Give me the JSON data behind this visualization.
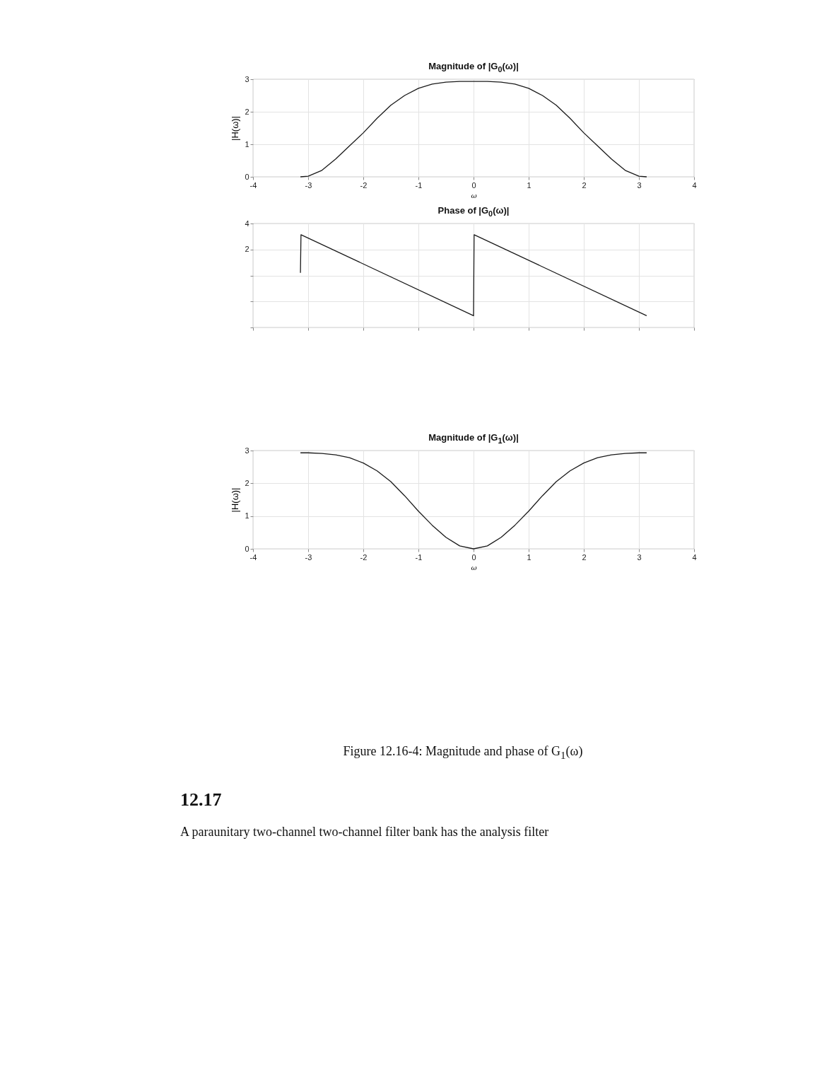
{
  "chart_data": [
    {
      "type": "line",
      "title": "Magnitude of |G$_{0}$(ω)|",
      "xlabel": "ω",
      "ylabel": "|H(ω)|",
      "xlim": [
        -4,
        4
      ],
      "xticks": [
        -4,
        -3,
        -2,
        -1,
        0,
        1,
        2,
        3,
        4
      ],
      "ylim": [
        0,
        3
      ],
      "yticks": [
        0,
        1,
        2,
        3
      ],
      "grid": true,
      "x": [
        -3.14,
        -3,
        -2.75,
        -2.5,
        -2.25,
        -2,
        -1.75,
        -1.5,
        -1.25,
        -1,
        -0.75,
        -0.5,
        -0.25,
        0,
        0.25,
        0.5,
        0.75,
        1,
        1.25,
        1.5,
        1.75,
        2,
        2.25,
        2.5,
        2.75,
        3,
        3.14
      ],
      "series": [
        {
          "color": "#1a1a1a",
          "values": [
            0,
            0.02,
            0.2,
            0.55,
            0.95,
            1.35,
            1.8,
            2.2,
            2.5,
            2.72,
            2.85,
            2.91,
            2.93,
            2.93,
            2.93,
            2.91,
            2.85,
            2.72,
            2.5,
            2.2,
            1.8,
            1.35,
            0.95,
            0.55,
            0.2,
            0.02,
            0
          ]
        }
      ]
    },
    {
      "type": "line",
      "title": "Phase of |G$_{0}$(ω)|",
      "xlim": [
        -4,
        4
      ],
      "xticks": [
        {
          "value": -4,
          "label": null
        },
        {
          "value": -3,
          "label": null
        },
        {
          "value": -2,
          "label": null
        },
        {
          "value": -1,
          "label": null
        },
        {
          "value": 0,
          "label": null
        },
        {
          "value": 1,
          "label": null
        },
        {
          "value": 2,
          "label": null
        },
        {
          "value": 3,
          "label": null
        },
        {
          "value": 4,
          "label": null
        }
      ],
      "ylim": [
        -4,
        4
      ],
      "yticks": [
        {
          "value": -4,
          "label": null
        },
        {
          "value": -2,
          "label": null
        },
        {
          "value": 0,
          "label": null
        },
        2,
        4
      ],
      "grid": true,
      "tick_labels": "y",
      "x": [
        -3.14,
        -3.13,
        0,
        0.01,
        3.14
      ],
      "series": [
        {
          "color": "#1a1a1a",
          "values": [
            0.2,
            3.14,
            -3.1,
            3.14,
            -3.1
          ]
        }
      ]
    },
    {
      "type": "line",
      "title": "Magnitude of |G$_{1}$(ω)|",
      "xlabel": "ω",
      "ylabel": "|H(ω)|",
      "xlim": [
        -4,
        4
      ],
      "xticks": [
        -4,
        -3,
        -2,
        -1,
        0,
        1,
        2,
        3,
        4
      ],
      "ylim": [
        0,
        3
      ],
      "yticks": [
        0,
        1,
        2,
        3
      ],
      "grid": true,
      "x": [
        -3.14,
        -3,
        -2.75,
        -2.5,
        -2.25,
        -2,
        -1.75,
        -1.5,
        -1.25,
        -1,
        -0.75,
        -0.5,
        -0.25,
        0,
        0.25,
        0.5,
        0.75,
        1,
        1.25,
        1.5,
        1.75,
        2,
        2.25,
        2.5,
        2.75,
        3,
        3.14
      ],
      "series": [
        {
          "color": "#1a1a1a",
          "values": [
            2.93,
            2.93,
            2.91,
            2.87,
            2.78,
            2.62,
            2.38,
            2.05,
            1.62,
            1.15,
            0.72,
            0.35,
            0.09,
            0,
            0.09,
            0.35,
            0.72,
            1.15,
            1.62,
            2.05,
            2.38,
            2.62,
            2.78,
            2.87,
            2.91,
            2.93,
            2.93
          ]
        }
      ],
      "annotations": [
        "Figure 12.16-4: Magnitude and phase of G$_{1}$(ω)",
        "12.17",
        "A paraunitary two-channel two-channel filter bank has the analysis filter"
      ]
    }
  ]
}
